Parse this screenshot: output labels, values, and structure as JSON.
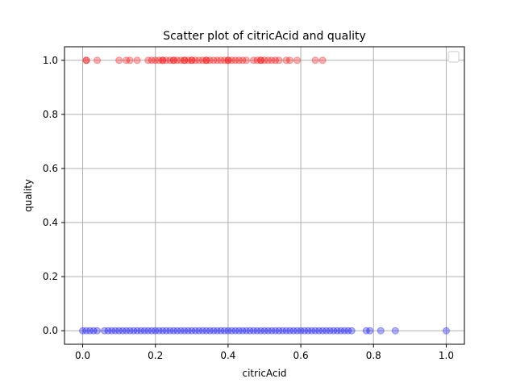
{
  "chart_data": {
    "type": "scatter",
    "title": "Scatter plot of citricAcid and quality",
    "xlabel": "citricAcid",
    "ylabel": "quality",
    "xlim": [
      -0.05,
      1.05
    ],
    "ylim": [
      -0.05,
      1.05
    ],
    "xticks": [
      0.0,
      0.2,
      0.4,
      0.6,
      0.8,
      1.0
    ],
    "xtick_labels": [
      "0.0",
      "0.2",
      "0.4",
      "0.6",
      "0.8",
      "1.0"
    ],
    "yticks": [
      0.0,
      0.2,
      0.4,
      0.6,
      0.8,
      1.0
    ],
    "ytick_labels": [
      "0.0",
      "0.2",
      "0.4",
      "0.6",
      "0.8",
      "1.0"
    ],
    "grid": true,
    "legend": {
      "placement": "top-right",
      "entries": []
    },
    "series": [
      {
        "color": "#ff0000",
        "alpha": 0.3,
        "x": [
          0.01,
          0.01,
          0.04,
          0.1,
          0.12,
          0.13,
          0.15,
          0.18,
          0.19,
          0.2,
          0.21,
          0.22,
          0.22,
          0.23,
          0.24,
          0.25,
          0.25,
          0.26,
          0.27,
          0.28,
          0.28,
          0.29,
          0.3,
          0.3,
          0.31,
          0.32,
          0.33,
          0.34,
          0.34,
          0.35,
          0.36,
          0.37,
          0.38,
          0.39,
          0.4,
          0.4,
          0.41,
          0.42,
          0.43,
          0.44,
          0.45,
          0.47,
          0.48,
          0.49,
          0.49,
          0.5,
          0.51,
          0.52,
          0.53,
          0.54,
          0.56,
          0.57,
          0.59,
          0.64,
          0.66
        ],
        "y": [
          1,
          1,
          1,
          1,
          1,
          1,
          1,
          1,
          1,
          1,
          1,
          1,
          1,
          1,
          1,
          1,
          1,
          1,
          1,
          1,
          1,
          1,
          1,
          1,
          1,
          1,
          1,
          1,
          1,
          1,
          1,
          1,
          1,
          1,
          1,
          1,
          1,
          1,
          1,
          1,
          1,
          1,
          1,
          1,
          1,
          1,
          1,
          1,
          1,
          1,
          1,
          1,
          1,
          1,
          1
        ]
      },
      {
        "color": "#0000ff",
        "alpha": 0.3,
        "x": [
          0.0,
          0.01,
          0.02,
          0.03,
          0.04,
          0.06,
          0.07,
          0.08,
          0.09,
          0.1,
          0.11,
          0.12,
          0.13,
          0.14,
          0.15,
          0.16,
          0.17,
          0.18,
          0.19,
          0.2,
          0.21,
          0.22,
          0.23,
          0.24,
          0.25,
          0.26,
          0.27,
          0.28,
          0.29,
          0.3,
          0.31,
          0.32,
          0.33,
          0.34,
          0.35,
          0.36,
          0.37,
          0.38,
          0.39,
          0.4,
          0.41,
          0.42,
          0.43,
          0.44,
          0.45,
          0.46,
          0.47,
          0.48,
          0.49,
          0.5,
          0.51,
          0.52,
          0.53,
          0.54,
          0.55,
          0.56,
          0.57,
          0.58,
          0.59,
          0.6,
          0.61,
          0.62,
          0.63,
          0.64,
          0.65,
          0.66,
          0.67,
          0.68,
          0.69,
          0.7,
          0.71,
          0.72,
          0.73,
          0.74,
          0.78,
          0.79,
          0.82,
          0.86,
          1.0
        ],
        "y": [
          0,
          0,
          0,
          0,
          0,
          0,
          0,
          0,
          0,
          0,
          0,
          0,
          0,
          0,
          0,
          0,
          0,
          0,
          0,
          0,
          0,
          0,
          0,
          0,
          0,
          0,
          0,
          0,
          0,
          0,
          0,
          0,
          0,
          0,
          0,
          0,
          0,
          0,
          0,
          0,
          0,
          0,
          0,
          0,
          0,
          0,
          0,
          0,
          0,
          0,
          0,
          0,
          0,
          0,
          0,
          0,
          0,
          0,
          0,
          0,
          0,
          0,
          0,
          0,
          0,
          0,
          0,
          0,
          0,
          0,
          0,
          0,
          0,
          0,
          0,
          0,
          0,
          0,
          0
        ]
      }
    ]
  }
}
